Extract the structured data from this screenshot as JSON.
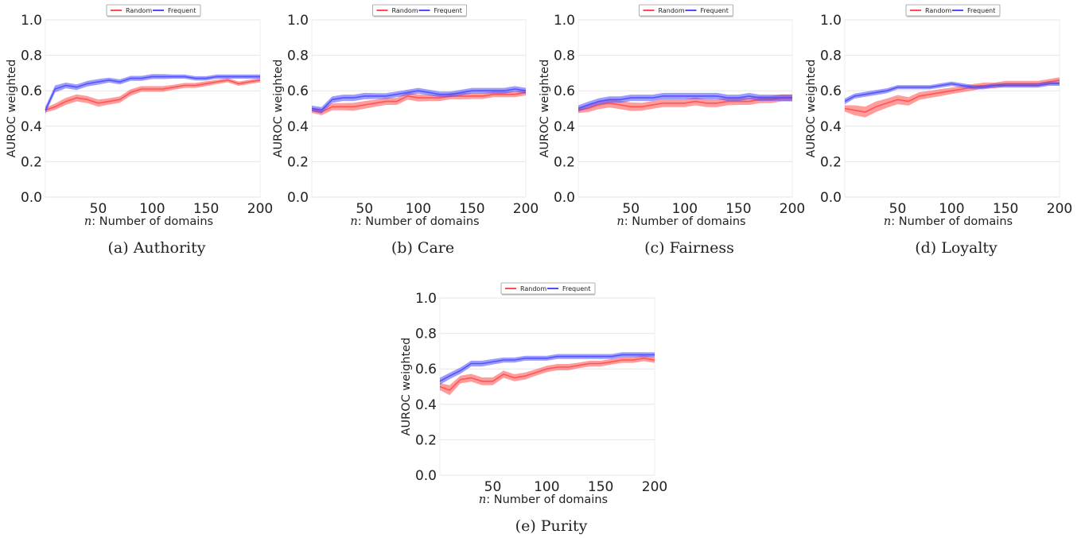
{
  "colors": {
    "random": "#ff4d4d",
    "frequent": "#4d4dff",
    "grid": "#e6e6e6"
  },
  "legend": {
    "random": "Random",
    "frequent": "Frequent"
  },
  "chart_data": [
    {
      "type": "line",
      "caption": "(a) Authority",
      "xlabel_var": "n",
      "xlabel_rest": ": Number of domains",
      "ylabel": "AUROC weighted",
      "xlim": [
        1,
        200
      ],
      "ylim": [
        0,
        1
      ],
      "xticks": [
        50,
        100,
        150,
        200
      ],
      "yticks": [
        "0.0",
        "0.2",
        "0.4",
        "0.6",
        "0.8",
        "1.0"
      ],
      "legend_position": "top-center",
      "x": [
        1,
        10,
        20,
        30,
        40,
        50,
        60,
        70,
        80,
        90,
        100,
        110,
        120,
        130,
        140,
        150,
        160,
        170,
        180,
        190,
        200
      ],
      "series": [
        {
          "name": "Random",
          "values": [
            0.49,
            0.51,
            0.54,
            0.56,
            0.55,
            0.53,
            0.54,
            0.55,
            0.59,
            0.61,
            0.61,
            0.61,
            0.62,
            0.63,
            0.63,
            0.64,
            0.65,
            0.66,
            0.64,
            0.65,
            0.66
          ],
          "band": [
            0.013,
            0.018,
            0.02,
            0.02,
            0.02,
            0.02,
            0.018,
            0.018,
            0.018,
            0.016,
            0.016,
            0.016,
            0.014,
            0.014,
            0.014,
            0.014,
            0.012,
            0.012,
            0.012,
            0.012,
            0.012
          ]
        },
        {
          "name": "Frequent",
          "values": [
            0.49,
            0.61,
            0.63,
            0.62,
            0.64,
            0.65,
            0.66,
            0.65,
            0.67,
            0.67,
            0.68,
            0.68,
            0.68,
            0.68,
            0.67,
            0.67,
            0.68,
            0.68,
            0.68,
            0.68,
            0.68
          ],
          "band": [
            0.02,
            0.02,
            0.016,
            0.016,
            0.016,
            0.016,
            0.014,
            0.014,
            0.014,
            0.014,
            0.014,
            0.014,
            0.012,
            0.012,
            0.012,
            0.012,
            0.012,
            0.012,
            0.012,
            0.012,
            0.012
          ]
        }
      ]
    },
    {
      "type": "line",
      "caption": "(b) Care",
      "xlabel_var": "n",
      "xlabel_rest": ": Number of domains",
      "ylabel": "AUROC weighted",
      "xlim": [
        1,
        200
      ],
      "ylim": [
        0,
        1
      ],
      "xticks": [
        50,
        100,
        150,
        200
      ],
      "yticks": [
        "0.0",
        "0.2",
        "0.4",
        "0.6",
        "0.8",
        "1.0"
      ],
      "legend_position": "top-center",
      "x": [
        1,
        10,
        20,
        30,
        40,
        50,
        60,
        70,
        80,
        90,
        100,
        110,
        120,
        130,
        140,
        150,
        160,
        170,
        180,
        190,
        200
      ],
      "series": [
        {
          "name": "Random",
          "values": [
            0.49,
            0.48,
            0.51,
            0.51,
            0.51,
            0.52,
            0.53,
            0.54,
            0.54,
            0.57,
            0.56,
            0.56,
            0.56,
            0.57,
            0.57,
            0.57,
            0.57,
            0.58,
            0.58,
            0.58,
            0.59
          ],
          "band": [
            0.015,
            0.018,
            0.02,
            0.02,
            0.022,
            0.022,
            0.02,
            0.02,
            0.02,
            0.02,
            0.02,
            0.018,
            0.018,
            0.018,
            0.018,
            0.016,
            0.016,
            0.016,
            0.016,
            0.016,
            0.016
          ]
        },
        {
          "name": "Frequent",
          "values": [
            0.5,
            0.49,
            0.55,
            0.56,
            0.56,
            0.57,
            0.57,
            0.57,
            0.58,
            0.59,
            0.6,
            0.59,
            0.58,
            0.58,
            0.59,
            0.6,
            0.6,
            0.6,
            0.6,
            0.61,
            0.6
          ],
          "band": [
            0.016,
            0.018,
            0.018,
            0.018,
            0.018,
            0.018,
            0.016,
            0.016,
            0.016,
            0.016,
            0.016,
            0.016,
            0.016,
            0.016,
            0.016,
            0.016,
            0.016,
            0.016,
            0.016,
            0.016,
            0.016
          ]
        }
      ]
    },
    {
      "type": "line",
      "caption": "(c) Fairness",
      "xlabel_var": "n",
      "xlabel_rest": ": Number of domains",
      "ylabel": "AUROC weighted",
      "xlim": [
        1,
        200
      ],
      "ylim": [
        0,
        1
      ],
      "xticks": [
        50,
        100,
        150,
        200
      ],
      "yticks": [
        "0.0",
        "0.2",
        "0.4",
        "0.6",
        "0.8",
        "1.0"
      ],
      "legend_position": "top-center",
      "x": [
        1,
        10,
        20,
        30,
        40,
        50,
        60,
        70,
        80,
        90,
        100,
        110,
        120,
        130,
        140,
        150,
        160,
        170,
        180,
        190,
        200
      ],
      "series": [
        {
          "name": "Random",
          "values": [
            0.49,
            0.5,
            0.52,
            0.53,
            0.52,
            0.51,
            0.51,
            0.52,
            0.53,
            0.53,
            0.53,
            0.54,
            0.53,
            0.53,
            0.54,
            0.54,
            0.54,
            0.55,
            0.55,
            0.56,
            0.56
          ],
          "band": [
            0.016,
            0.02,
            0.024,
            0.024,
            0.024,
            0.024,
            0.022,
            0.022,
            0.022,
            0.022,
            0.022,
            0.022,
            0.022,
            0.022,
            0.022,
            0.02,
            0.02,
            0.02,
            0.02,
            0.02,
            0.02
          ]
        },
        {
          "name": "Frequent",
          "values": [
            0.5,
            0.52,
            0.54,
            0.55,
            0.55,
            0.56,
            0.56,
            0.56,
            0.57,
            0.57,
            0.57,
            0.57,
            0.57,
            0.57,
            0.56,
            0.56,
            0.57,
            0.56,
            0.56,
            0.56,
            0.56
          ],
          "band": [
            0.018,
            0.018,
            0.018,
            0.018,
            0.018,
            0.018,
            0.018,
            0.018,
            0.018,
            0.018,
            0.018,
            0.018,
            0.018,
            0.018,
            0.018,
            0.018,
            0.018,
            0.018,
            0.018,
            0.018,
            0.018
          ]
        }
      ]
    },
    {
      "type": "line",
      "caption": "(d) Loyalty",
      "xlabel_var": "n",
      "xlabel_rest": ": Number of domains",
      "ylabel": "AUROC weighted",
      "xlim": [
        1,
        200
      ],
      "ylim": [
        0,
        1
      ],
      "xticks": [
        50,
        100,
        150,
        200
      ],
      "yticks": [
        "0.0",
        "0.2",
        "0.4",
        "0.6",
        "0.8",
        "1.0"
      ],
      "legend_position": "top-center",
      "x": [
        1,
        10,
        20,
        30,
        40,
        50,
        60,
        70,
        80,
        90,
        100,
        110,
        120,
        130,
        140,
        150,
        160,
        170,
        180,
        190,
        200
      ],
      "series": [
        {
          "name": "Random",
          "values": [
            0.5,
            0.49,
            0.48,
            0.51,
            0.53,
            0.55,
            0.54,
            0.57,
            0.58,
            0.59,
            0.6,
            0.61,
            0.62,
            0.63,
            0.63,
            0.64,
            0.64,
            0.64,
            0.64,
            0.65,
            0.66
          ],
          "band": [
            0.018,
            0.028,
            0.03,
            0.03,
            0.026,
            0.026,
            0.024,
            0.022,
            0.02,
            0.02,
            0.018,
            0.018,
            0.018,
            0.016,
            0.016,
            0.016,
            0.016,
            0.016,
            0.016,
            0.016,
            0.016
          ]
        },
        {
          "name": "Frequent",
          "values": [
            0.54,
            0.57,
            0.58,
            0.59,
            0.6,
            0.62,
            0.62,
            0.62,
            0.62,
            0.63,
            0.64,
            0.63,
            0.62,
            0.62,
            0.63,
            0.63,
            0.63,
            0.63,
            0.63,
            0.64,
            0.64
          ],
          "band": [
            0.016,
            0.014,
            0.014,
            0.014,
            0.014,
            0.012,
            0.012,
            0.012,
            0.012,
            0.012,
            0.012,
            0.012,
            0.012,
            0.012,
            0.012,
            0.012,
            0.012,
            0.012,
            0.012,
            0.012,
            0.012
          ]
        }
      ]
    },
    {
      "type": "line",
      "caption": "(e) Purity",
      "xlabel_var": "n",
      "xlabel_rest": ": Number of domains",
      "ylabel": "AUROC weighted",
      "xlim": [
        1,
        200
      ],
      "ylim": [
        0,
        1
      ],
      "xticks": [
        50,
        100,
        150,
        200
      ],
      "yticks": [
        "0.0",
        "0.2",
        "0.4",
        "0.6",
        "0.8",
        "1.0"
      ],
      "legend_position": "top-center",
      "x": [
        1,
        10,
        20,
        30,
        40,
        50,
        60,
        70,
        80,
        90,
        100,
        110,
        120,
        130,
        140,
        150,
        160,
        170,
        180,
        190,
        200
      ],
      "series": [
        {
          "name": "Random",
          "values": [
            0.5,
            0.48,
            0.54,
            0.55,
            0.53,
            0.53,
            0.57,
            0.55,
            0.56,
            0.58,
            0.6,
            0.61,
            0.61,
            0.62,
            0.63,
            0.63,
            0.64,
            0.65,
            0.65,
            0.66,
            0.65
          ],
          "band": [
            0.02,
            0.028,
            0.022,
            0.022,
            0.022,
            0.022,
            0.02,
            0.02,
            0.02,
            0.018,
            0.018,
            0.018,
            0.018,
            0.016,
            0.016,
            0.016,
            0.016,
            0.016,
            0.016,
            0.016,
            0.016
          ]
        },
        {
          "name": "Frequent",
          "values": [
            0.53,
            0.56,
            0.59,
            0.63,
            0.63,
            0.64,
            0.65,
            0.65,
            0.66,
            0.66,
            0.66,
            0.67,
            0.67,
            0.67,
            0.67,
            0.67,
            0.67,
            0.68,
            0.68,
            0.68,
            0.68
          ],
          "band": [
            0.02,
            0.018,
            0.018,
            0.016,
            0.016,
            0.016,
            0.014,
            0.014,
            0.014,
            0.014,
            0.014,
            0.014,
            0.014,
            0.014,
            0.014,
            0.014,
            0.014,
            0.014,
            0.014,
            0.014,
            0.014
          ]
        }
      ]
    }
  ]
}
